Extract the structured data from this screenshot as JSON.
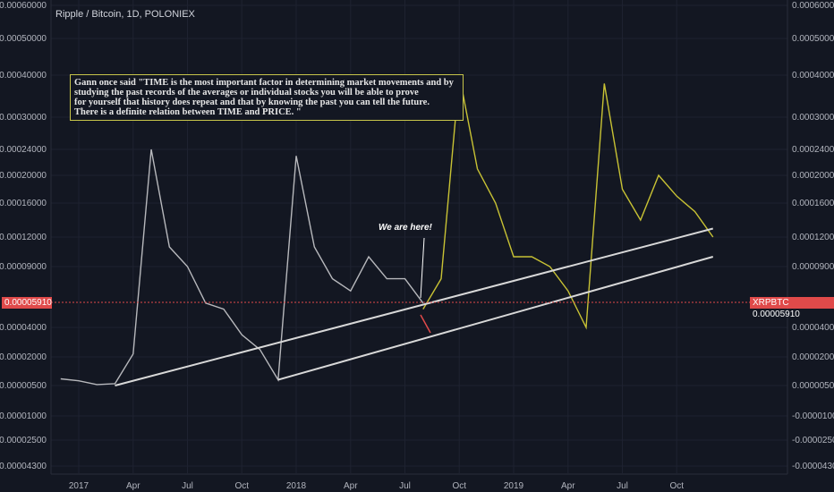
{
  "chart_data": {
    "type": "line",
    "title": "Ripple / Bitcoin, 1D, POLONIEX",
    "y_ticks": [
      "0.00060000",
      "0.00050000",
      "0.00040000",
      "0.00030000",
      "0.00024000",
      "0.00020000",
      "0.00016000",
      "0.00012000",
      "0.00009000",
      "0.00004000",
      "0.00002000",
      "0.00000500",
      "-0.00001000",
      "-0.00002500",
      "-0.00004300"
    ],
    "x_ticks": [
      "2017",
      "Apr",
      "Jul",
      "Oct",
      "2018",
      "Apr",
      "Jul",
      "Oct",
      "2019",
      "Apr",
      "Jul",
      "Oct"
    ],
    "current_price_label": "0.00005910",
    "symbol_label": "XRPBTC",
    "note_lines": [
      "Gann once said \"TIME is the most important factor in determining market movements and by",
      " studying the past records of the averages or individual stocks you will be able to prove",
      " for yourself that history does repeat and that by knowing the past you can tell the future.",
      " There is a definite relation between TIME and PRICE. \""
    ],
    "annotation": "We are here!",
    "series": [
      {
        "color": "#b7b8bc",
        "x": [
          "2016-12",
          "2017-01",
          "2017-02",
          "2017-03",
          "2017-04",
          "2017-05",
          "2017-06",
          "2017-07",
          "2017-08",
          "2017-09",
          "2017-10",
          "2017-11",
          "2017-12",
          "2018-01",
          "2018-02",
          "2018-03",
          "2018-04",
          "2018-05",
          "2018-06",
          "2018-07",
          "2018-08"
        ],
        "values": [
          8.5e-06,
          7.5e-06,
          5.5e-06,
          6e-06,
          2.2e-05,
          0.00024,
          0.00011,
          9e-05,
          6e-05,
          5.5e-05,
          3.5e-05,
          2.5e-05,
          8e-06,
          0.00023,
          0.00011,
          8e-05,
          7e-05,
          0.0001,
          8e-05,
          8e-05,
          6e-05
        ]
      },
      {
        "color": "#c8c234",
        "x": [
          "2018-08",
          "2018-09",
          "2018-10",
          "2018-11",
          "2018-12",
          "2019-01",
          "2019-02",
          "2019-03",
          "2019-04",
          "2019-05",
          "2019-06",
          "2019-07",
          "2019-08",
          "2019-09",
          "2019-10",
          "2019-11",
          "2019-12"
        ],
        "values": [
          5.5e-05,
          8e-05,
          0.0004,
          0.00021,
          0.00016,
          0.0001,
          0.0001,
          9e-05,
          7e-05,
          4e-05,
          0.00038,
          0.00018,
          0.00014,
          0.0002,
          0.00017,
          0.00015,
          0.00012
        ]
      }
    ],
    "trendlines": [
      {
        "from": [
          "2017-03",
          "0.000005"
        ],
        "to": [
          "2019-12",
          "0.00013"
        ],
        "color": "#d8d8d8"
      },
      {
        "from": [
          "2017-12",
          "0.000008"
        ],
        "to": [
          "2019-12",
          "0.00010"
        ],
        "color": "#d8d8d8"
      }
    ],
    "grid": true,
    "legend": "none"
  }
}
